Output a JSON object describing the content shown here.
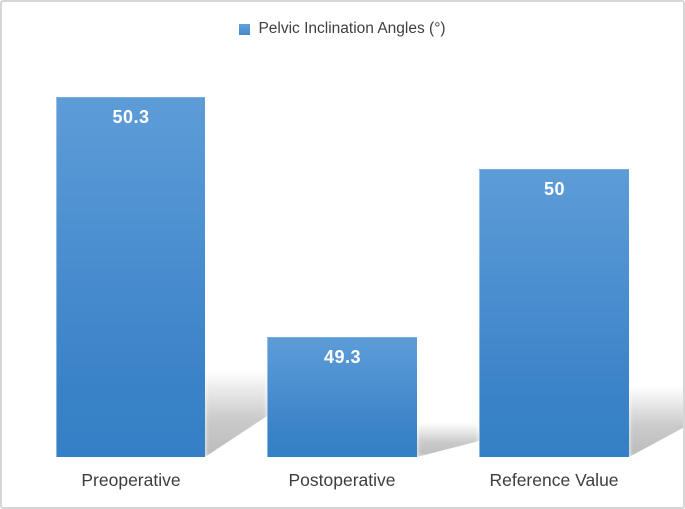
{
  "figure": {
    "background": "#ffffff",
    "border_color": "#d6d6d6"
  },
  "chart_data": {
    "type": "bar",
    "title": "",
    "xlabel": "",
    "ylabel": "",
    "legend_position": "top-center",
    "legend": [
      {
        "label": "Pelvic Inclination Angles (°)",
        "swatch_color": "#4a8fd0"
      }
    ],
    "categories": [
      "Preoperative",
      "Postoperative",
      "Reference Value"
    ],
    "values": [
      50.3,
      49.3,
      50
    ],
    "data_labels": [
      "50.3",
      "49.3",
      "50"
    ],
    "ylim": [
      48.8,
      50.454
    ],
    "y_axis_visible": false,
    "gridlines": false,
    "bar_color_top": "#5d9cd7",
    "bar_color_bottom": "#3480c6",
    "data_label_color": "#ffffff",
    "category_label_color": "#3d3d3d",
    "shadow_color": "#bdbdbd",
    "shadow_style": "perspective-lower-right"
  }
}
